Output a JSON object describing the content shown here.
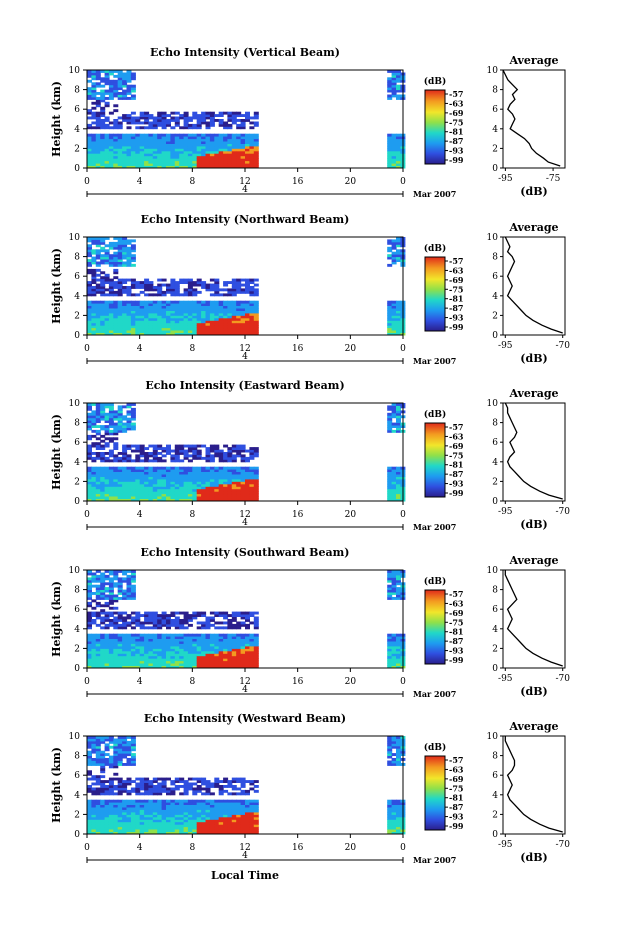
{
  "figure": {
    "xlabel": "Local Time",
    "month_label": "Mar 2007",
    "day_label": "4"
  },
  "chart_data": [
    {
      "type": "heatmap",
      "title": "Echo Intensity (Vertical Beam)",
      "xlabel": "Local Time",
      "ylabel": "Height (km)",
      "xlim": [
        0,
        24
      ],
      "ylim": [
        0,
        10
      ],
      "x_ticks": [
        "0",
        "4",
        "8",
        "12",
        "16",
        "20",
        "0"
      ],
      "y_ticks": [
        "0",
        "2",
        "4",
        "6",
        "8",
        "10"
      ],
      "colorbar": {
        "label": "(dB)",
        "ticks": [
          "-57",
          "-63",
          "-69",
          "-75",
          "-81",
          "-87",
          "-93",
          "-99"
        ],
        "range": [
          -99,
          -57
        ]
      },
      "data_segments": [
        [
          0,
          13
        ],
        [
          22.8,
          24
        ]
      ],
      "average": {
        "title": "Average",
        "xlabel": "(dB)",
        "xlim": [
          -96,
          -70
        ],
        "x_ticks": [
          "-95",
          "-75"
        ],
        "height": [
          0.2,
          0.6,
          1.0,
          1.5,
          2.0,
          2.5,
          3.0,
          3.5,
          4.0,
          4.5,
          5.0,
          5.5,
          6.0,
          6.5,
          7.0,
          7.5,
          8.0,
          8.5,
          9.0,
          9.5,
          10.0
        ],
        "values": [
          -72,
          -77,
          -79,
          -82,
          -84,
          -85,
          -87,
          -90,
          -93,
          -92,
          -91,
          -92,
          -94,
          -93,
          -91,
          -92,
          -90,
          -92,
          -94,
          -95,
          -96
        ]
      }
    },
    {
      "type": "heatmap",
      "title": "Echo Intensity (Northward Beam)",
      "xlabel": "Local Time",
      "ylabel": "Height (km)",
      "xlim": [
        0,
        24
      ],
      "ylim": [
        0,
        10
      ],
      "x_ticks": [
        "0",
        "4",
        "8",
        "12",
        "16",
        "20",
        "0"
      ],
      "y_ticks": [
        "0",
        "2",
        "4",
        "6",
        "8",
        "10"
      ],
      "colorbar": {
        "label": "(dB)",
        "ticks": [
          "-57",
          "-63",
          "-69",
          "-75",
          "-81",
          "-87",
          "-93",
          "-99"
        ],
        "range": [
          -99,
          -57
        ]
      },
      "data_segments": [
        [
          0,
          13
        ],
        [
          22.8,
          24
        ]
      ],
      "average": {
        "title": "Average",
        "xlabel": "(dB)",
        "xlim": [
          -96,
          -69
        ],
        "x_ticks": [
          "-95",
          "-70"
        ],
        "height": [
          0.2,
          0.6,
          1.0,
          1.5,
          2.0,
          2.5,
          3.0,
          3.5,
          4.0,
          4.5,
          5.0,
          5.5,
          6.0,
          6.5,
          7.0,
          7.5,
          8.0,
          8.5,
          9.0,
          9.5,
          10.0
        ],
        "values": [
          -70,
          -75,
          -79,
          -83,
          -86,
          -88,
          -90,
          -92,
          -94,
          -93,
          -92,
          -93,
          -94,
          -93,
          -92,
          -91,
          -92,
          -94,
          -93,
          -94,
          -95
        ]
      }
    },
    {
      "type": "heatmap",
      "title": "Echo Intensity (Eastward Beam)",
      "xlabel": "Local Time",
      "ylabel": "Height (km)",
      "xlim": [
        0,
        24
      ],
      "ylim": [
        0,
        10
      ],
      "x_ticks": [
        "0",
        "4",
        "8",
        "12",
        "16",
        "20",
        "0"
      ],
      "y_ticks": [
        "0",
        "2",
        "4",
        "6",
        "8",
        "10"
      ],
      "colorbar": {
        "label": "(dB)",
        "ticks": [
          "-57",
          "-63",
          "-69",
          "-75",
          "-81",
          "-87",
          "-93",
          "-99"
        ],
        "range": [
          -99,
          -57
        ]
      },
      "data_segments": [
        [
          0,
          13
        ],
        [
          22.8,
          24
        ]
      ],
      "average": {
        "title": "Average",
        "xlabel": "(dB)",
        "xlim": [
          -96,
          -69
        ],
        "x_ticks": [
          "-95",
          "-70"
        ],
        "height": [
          0.2,
          0.6,
          1.0,
          1.5,
          2.0,
          2.5,
          3.0,
          3.5,
          4.0,
          4.5,
          5.0,
          5.5,
          6.0,
          6.5,
          7.0,
          7.5,
          8.0,
          8.5,
          9.0,
          9.5,
          10.0
        ],
        "values": [
          -70,
          -76,
          -80,
          -84,
          -87,
          -89,
          -91,
          -93,
          -94,
          -93,
          -91,
          -92,
          -93,
          -91,
          -90,
          -91,
          -92,
          -93,
          -94,
          -94,
          -95
        ]
      }
    },
    {
      "type": "heatmap",
      "title": "Echo Intensity (Southward Beam)",
      "xlabel": "Local Time",
      "ylabel": "Height (km)",
      "xlim": [
        0,
        24
      ],
      "ylim": [
        0,
        10
      ],
      "x_ticks": [
        "0",
        "4",
        "8",
        "12",
        "16",
        "20",
        "0"
      ],
      "y_ticks": [
        "0",
        "2",
        "4",
        "6",
        "8",
        "10"
      ],
      "colorbar": {
        "label": "(dB)",
        "ticks": [
          "-57",
          "-63",
          "-69",
          "-75",
          "-81",
          "-87",
          "-93",
          "-99"
        ],
        "range": [
          -99,
          -57
        ]
      },
      "data_segments": [
        [
          0,
          13
        ],
        [
          22.8,
          24
        ]
      ],
      "average": {
        "title": "Average",
        "xlabel": "(dB)",
        "xlim": [
          -96,
          -69
        ],
        "x_ticks": [
          "-95",
          "-70"
        ],
        "height": [
          0.2,
          0.6,
          1.0,
          1.5,
          2.0,
          2.5,
          3.0,
          3.5,
          4.0,
          4.5,
          5.0,
          5.5,
          6.0,
          6.5,
          7.0,
          7.5,
          8.0,
          8.5,
          9.0,
          9.5,
          10.0
        ],
        "values": [
          -70,
          -75,
          -79,
          -83,
          -86,
          -88,
          -90,
          -92,
          -94,
          -93,
          -92,
          -93,
          -94,
          -92,
          -90,
          -91,
          -92,
          -93,
          -94,
          -95,
          -95
        ]
      }
    },
    {
      "type": "heatmap",
      "title": "Echo Intensity (Westward Beam)",
      "xlabel": "Local Time",
      "ylabel": "Height (km)",
      "xlim": [
        0,
        24
      ],
      "ylim": [
        0,
        10
      ],
      "x_ticks": [
        "0",
        "4",
        "8",
        "12",
        "16",
        "20",
        "0"
      ],
      "y_ticks": [
        "0",
        "2",
        "4",
        "6",
        "8",
        "10"
      ],
      "colorbar": {
        "label": "(dB)",
        "ticks": [
          "-57",
          "-63",
          "-69",
          "-75",
          "-81",
          "-87",
          "-93",
          "-99"
        ],
        "range": [
          -99,
          -57
        ]
      },
      "data_segments": [
        [
          0,
          13
        ],
        [
          22.8,
          24
        ]
      ],
      "average": {
        "title": "Average",
        "xlabel": "(dB)",
        "xlim": [
          -96,
          -69
        ],
        "x_ticks": [
          "-95",
          "-70"
        ],
        "height": [
          0.2,
          0.6,
          1.0,
          1.5,
          2.0,
          2.5,
          3.0,
          3.5,
          4.0,
          4.5,
          5.0,
          5.5,
          6.0,
          6.5,
          7.0,
          7.5,
          8.0,
          8.5,
          9.0,
          9.5,
          10.0
        ],
        "values": [
          -70,
          -76,
          -80,
          -84,
          -87,
          -89,
          -91,
          -93,
          -94,
          -93,
          -92,
          -93,
          -94,
          -92,
          -91,
          -91,
          -92,
          -93,
          -94,
          -95,
          -95
        ]
      }
    }
  ]
}
